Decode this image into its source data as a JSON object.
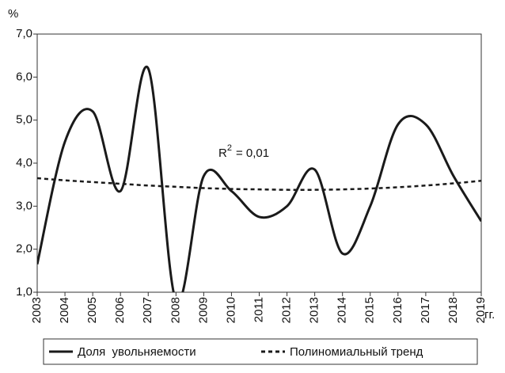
{
  "chart_data": {
    "type": "line",
    "y_label": "%",
    "x_label": "гг.",
    "annotation": {
      "base": "R",
      "sup": "2",
      "rest": "= 0,01"
    },
    "x": [
      2003,
      2004,
      2005,
      2006,
      2007,
      2008,
      2009,
      2010,
      2011,
      2012,
      2013,
      2014,
      2015,
      2016,
      2017,
      2018,
      2019
    ],
    "series": [
      {
        "name": "Доля  увольняемости",
        "color": "#1a1a1a",
        "dash": false,
        "values": [
          1.65,
          4.5,
          5.2,
          3.35,
          6.2,
          0.8,
          3.7,
          3.35,
          2.75,
          3.0,
          3.85,
          1.9,
          3.0,
          4.9,
          4.9,
          3.7,
          2.65
        ]
      },
      {
        "name": "Полиномиальный тренд",
        "color": "#1a1a1a",
        "dash": true,
        "values": [
          3.65,
          3.6,
          3.56,
          3.52,
          3.48,
          3.45,
          3.42,
          3.4,
          3.39,
          3.38,
          3.38,
          3.39,
          3.41,
          3.44,
          3.48,
          3.53,
          3.59
        ]
      }
    ],
    "xlim": [
      2003,
      2019
    ],
    "xticks": [
      2003,
      2004,
      2005,
      2006,
      2007,
      2008,
      2009,
      2010,
      2011,
      2012,
      2013,
      2014,
      2015,
      2016,
      2017,
      2018,
      2019
    ],
    "ylim": [
      1,
      7
    ],
    "yticks": [
      {
        "value": 1,
        "label": "1,0"
      },
      {
        "value": 2,
        "label": "2,0"
      },
      {
        "value": 3,
        "label": "3,0"
      },
      {
        "value": 4,
        "label": "4,0"
      },
      {
        "value": 5,
        "label": "5,0"
      },
      {
        "value": 6,
        "label": "6,0"
      },
      {
        "value": 7,
        "label": "7,0"
      }
    ],
    "legend": "bottom"
  }
}
